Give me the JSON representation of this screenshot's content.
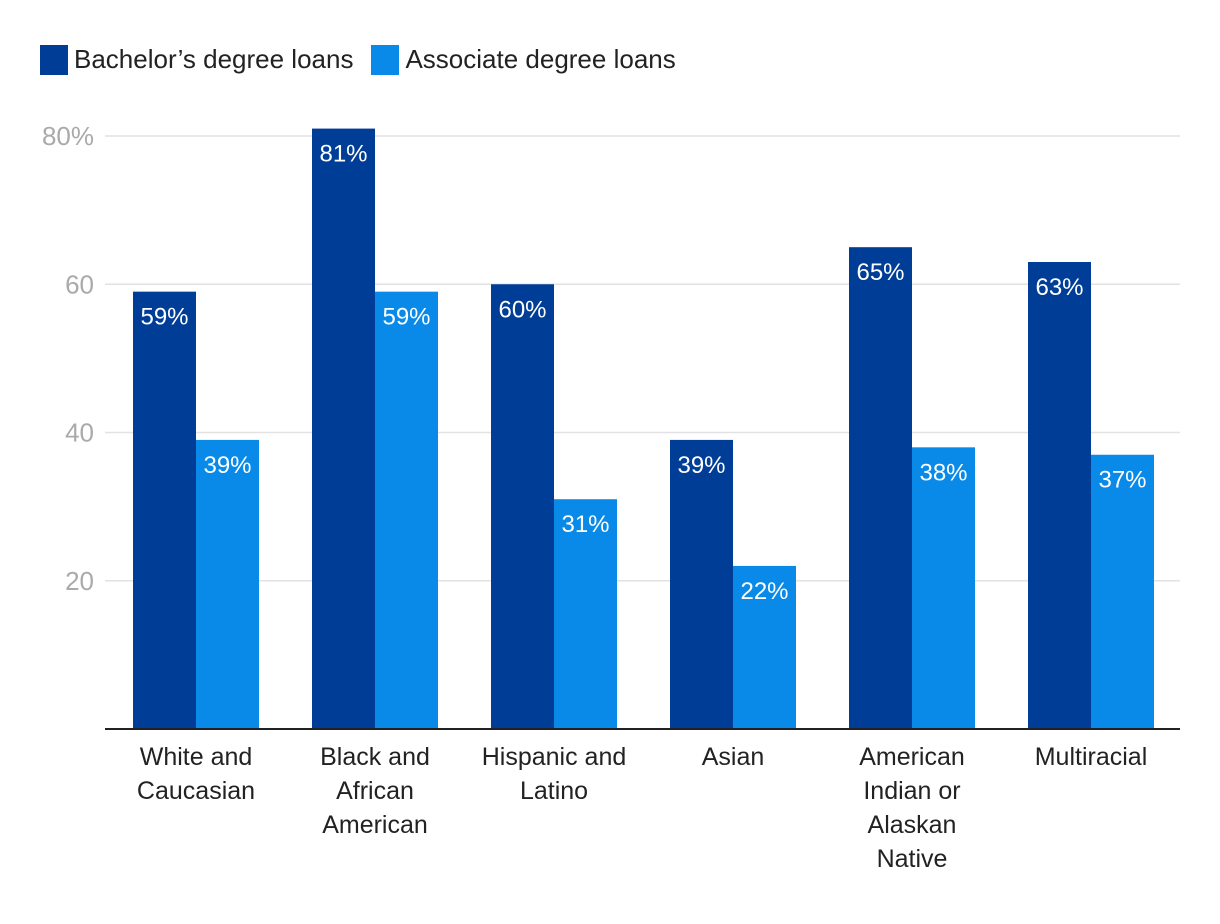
{
  "chart_data": {
    "type": "bar",
    "categories": [
      [
        "White and",
        "Caucasian"
      ],
      [
        "Black and",
        "African",
        "American"
      ],
      [
        "Hispanic and",
        "Latino"
      ],
      [
        "Asian"
      ],
      [
        "American",
        "Indian or",
        "Alaskan",
        "Native"
      ],
      [
        "Multiracial"
      ]
    ],
    "series": [
      {
        "name": "Bachelor’s degree loans",
        "color": "#003d96",
        "values": [
          59,
          81,
          60,
          39,
          65,
          63
        ],
        "labels": [
          "59%",
          "81%",
          "60%",
          "39%",
          "65%",
          "63%"
        ]
      },
      {
        "name": "Associate degree loans",
        "color": "#0a8ae8",
        "values": [
          39,
          59,
          31,
          22,
          38,
          37
        ],
        "labels": [
          "39%",
          "59%",
          "31%",
          "22%",
          "38%",
          "37%"
        ]
      }
    ],
    "ylim": [
      0,
      80
    ],
    "yticks": [
      20,
      40,
      60,
      80
    ],
    "ytick_labels": [
      "20",
      "40",
      "60",
      "80%"
    ],
    "title": "",
    "xlabel": "",
    "ylabel": "",
    "grid": true,
    "legend_position": "top-left"
  }
}
